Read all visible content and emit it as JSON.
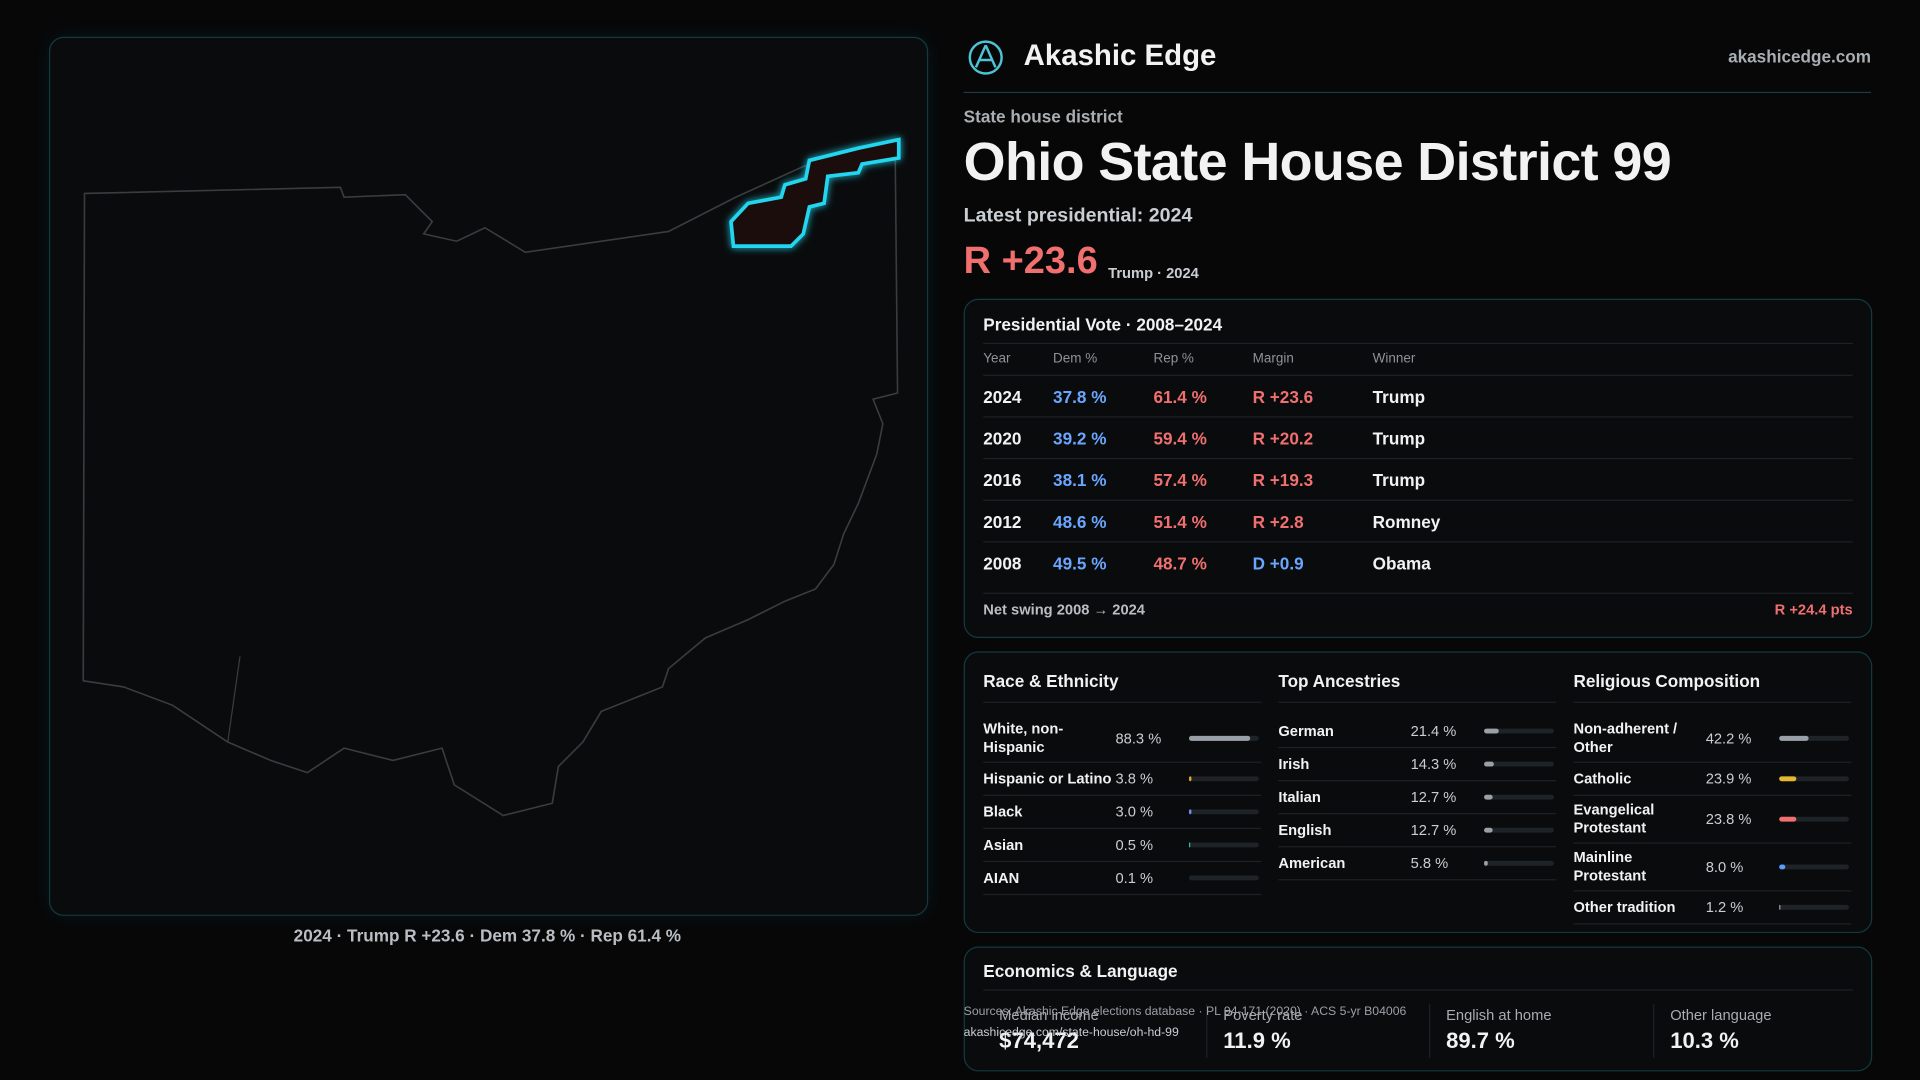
{
  "header": {
    "brand": "Akashic Edge",
    "site": "akashicedge.com"
  },
  "district": {
    "kicker": "State house district",
    "title": "Ohio State House District 99",
    "latest": "Latest presidential: 2024",
    "margin": "R +23.6",
    "margin_note": "Trump · 2024"
  },
  "map": {
    "caption": "2024 · Trump R +23.6 · Dem 37.8 % · Rep 61.4 %"
  },
  "presidential": {
    "title": "Presidential Vote · 2008–2024",
    "headers": [
      "Year",
      "Dem %",
      "Rep %",
      "Margin",
      "Winner"
    ],
    "rows": [
      [
        "2024",
        "37.8 %",
        "61.4 %",
        "R +23.6",
        "Trump"
      ],
      [
        "2020",
        "39.2 %",
        "59.4 %",
        "R +20.2",
        "Trump"
      ],
      [
        "2016",
        "38.1 %",
        "57.4 %",
        "R +19.3",
        "Trump"
      ],
      [
        "2012",
        "48.6 %",
        "51.4 %",
        "R +2.8",
        "Romney"
      ],
      [
        "2008",
        "49.5 %",
        "48.7 %",
        "D +0.9",
        "Obama"
      ]
    ],
    "footer_label": "Net swing 2008 → 2024",
    "footer_value": "R +24.4 pts"
  },
  "demographics": [
    {
      "title": "Race & Ethnicity",
      "items": [
        {
          "label": "White, non-Hispanic",
          "value": 88.3,
          "value_label": "88.3 %",
          "color": "#9aa0a8"
        },
        {
          "label": "Hispanic or Latino",
          "value": 3.8,
          "value_label": "3.8 %",
          "color": "#e0a030"
        },
        {
          "label": "Black",
          "value": 3.0,
          "value_label": "3.0 %",
          "color": "#6a8cff"
        },
        {
          "label": "Asian",
          "value": 0.5,
          "value_label": "0.5 %",
          "color": "#3fb8a0"
        },
        {
          "label": "AIAN",
          "value": 0.1,
          "value_label": "0.1 %",
          "color": "#7a6ad8"
        }
      ]
    },
    {
      "title": "Top Ancestries",
      "items": [
        {
          "label": "German",
          "value": 21.4,
          "value_label": "21.4 %",
          "color": "#9aa0a8"
        },
        {
          "label": "Irish",
          "value": 14.3,
          "value_label": "14.3 %",
          "color": "#9aa0a8"
        },
        {
          "label": "Italian",
          "value": 12.7,
          "value_label": "12.7 %",
          "color": "#9aa0a8"
        },
        {
          "label": "English",
          "value": 12.7,
          "value_label": "12.7 %",
          "color": "#9aa0a8"
        },
        {
          "label": "American",
          "value": 5.8,
          "value_label": "5.8 %",
          "color": "#9aa0a8"
        }
      ]
    },
    {
      "title": "Religious Composition",
      "items": [
        {
          "label": "Non-adherent / Other",
          "value": 42.2,
          "value_label": "42.2 %",
          "color": "#9aa0a8"
        },
        {
          "label": "Catholic",
          "value": 23.9,
          "value_label": "23.9 %",
          "color": "#e6b830"
        },
        {
          "label": "Evangelical Protestant",
          "value": 23.8,
          "value_label": "23.8 %",
          "color": "#f06f6f"
        },
        {
          "label": "Mainline Protestant",
          "value": 8.0,
          "value_label": "8.0 %",
          "color": "#5a9cff"
        },
        {
          "label": "Other tradition",
          "value": 1.2,
          "value_label": "1.2 %",
          "color": "#9aa0a8"
        }
      ]
    }
  ],
  "economics": {
    "title": "Economics & Language",
    "items": [
      {
        "label": "Median income",
        "value": "$74,472"
      },
      {
        "label": "Poverty rate",
        "value": "11.9 %"
      },
      {
        "label": "English at home",
        "value": "89.7 %"
      },
      {
        "label": "Other language",
        "value": "10.3 %"
      }
    ]
  },
  "sources": {
    "line1": "Sources: Akashic Edge elections database · PL 94-171 (2020) · ACS 5-yr B04006",
    "line2": "akashicedge.com/state-house/oh-hd-99"
  }
}
